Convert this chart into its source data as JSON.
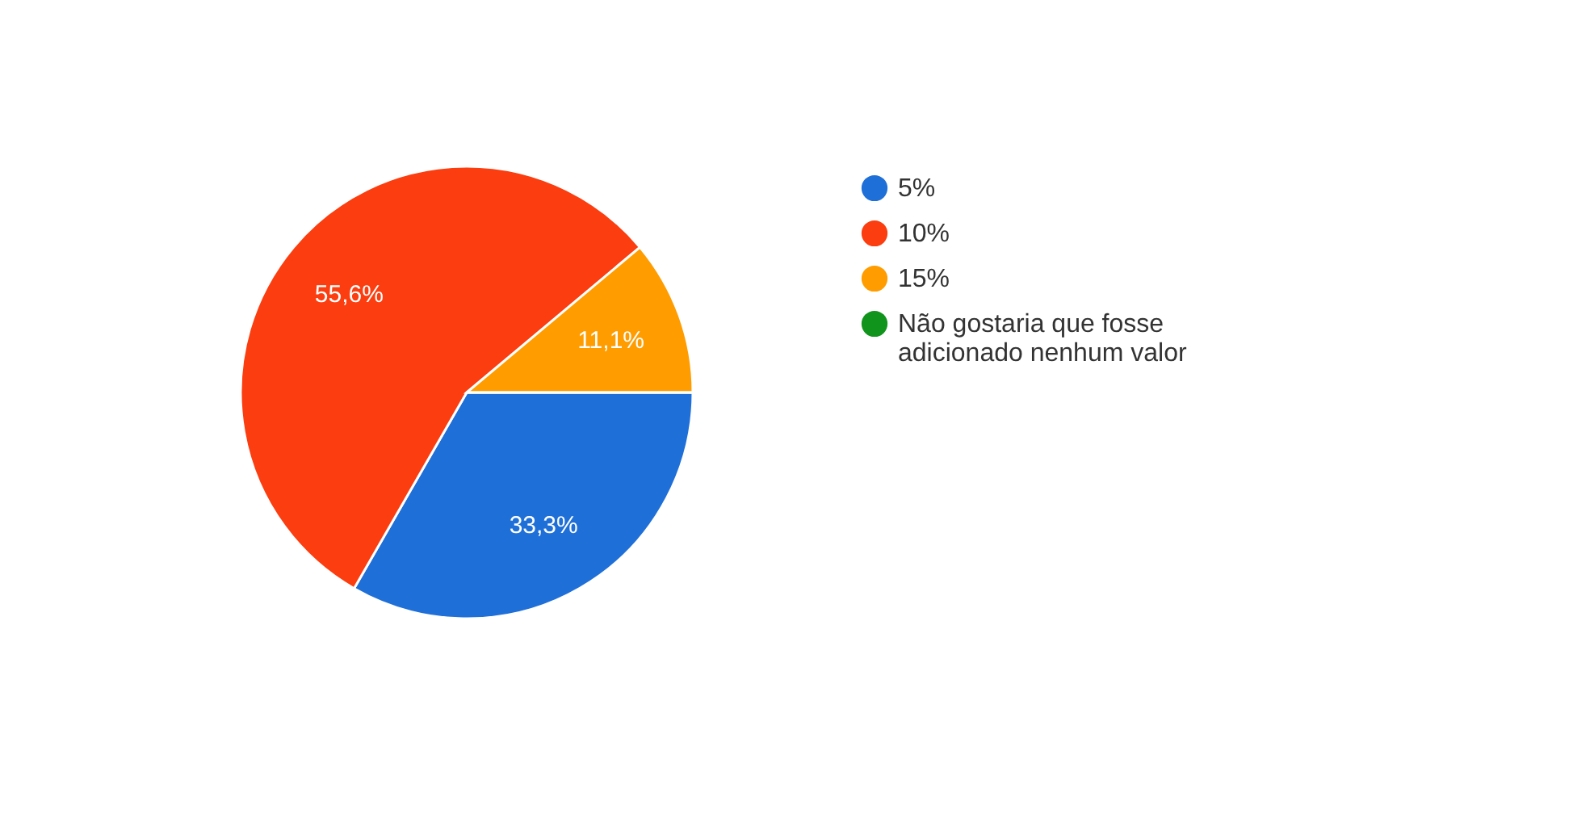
{
  "chart_data": {
    "type": "pie",
    "categories": [
      "5%",
      "10%",
      "15%",
      "Não gostaria que fosse adicionado nenhum valor"
    ],
    "values": [
      33.3,
      55.6,
      11.1,
      0
    ],
    "colors": [
      "#1f6fd8",
      "#fb3d0f",
      "#ff9c00",
      "#11941b"
    ],
    "value_labels": [
      "33,3%",
      "55,6%",
      "11,1%",
      null
    ],
    "legend": "right"
  }
}
